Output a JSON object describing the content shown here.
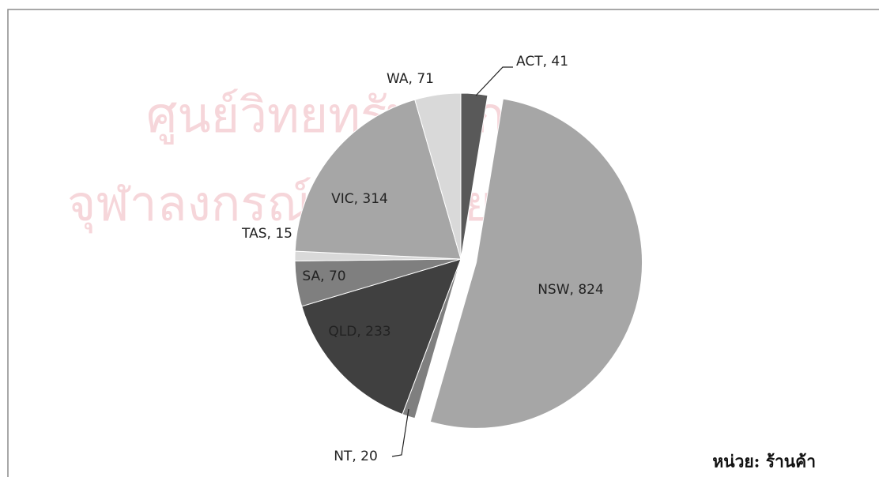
{
  "chart_data": {
    "type": "pie",
    "values": [
      41,
      824,
      20,
      233,
      70,
      15,
      314,
      71
    ],
    "value_labels": [
      "ACT, 41",
      "NSW, 824",
      "NT, 20",
      "QLD, 233",
      "SA, 70",
      "TAS, 15",
      "VIC, 314",
      "WA, 71"
    ],
    "colors": [
      "#595959",
      "#a6a6a6",
      "#7f7f7f",
      "#404040",
      "#7f7f7f",
      "#d9d9d9",
      "#a6a6a6",
      "#d9d9d9"
    ],
    "note": "หน่วย: ร้านค้า"
  },
  "watermark": [
    "ศูนย์วิทยทรัพยากร",
    "จุฬาลงกรณ์มหาวิทยาลัย"
  ]
}
